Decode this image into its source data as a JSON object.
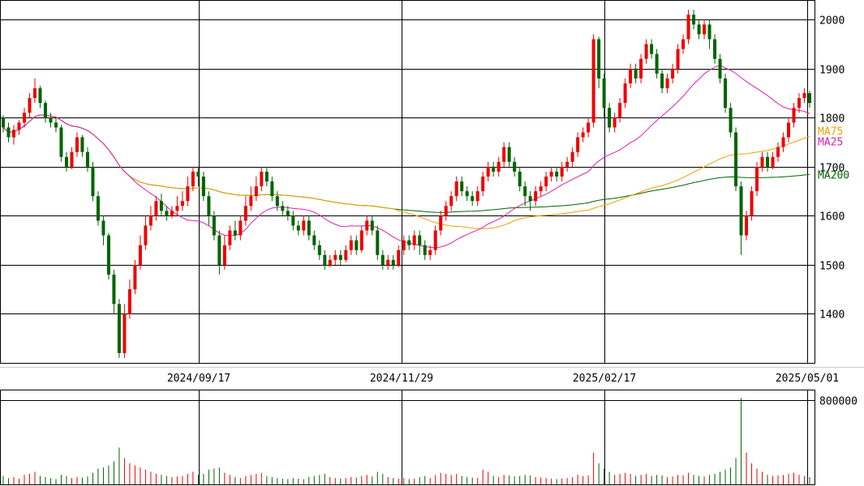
{
  "colors": {
    "up_candle": "#ef0000",
    "down_candle": "#006400",
    "ma_short": "#f0a000",
    "ma25": "#e020b0",
    "ma200": "#006400",
    "grid": "#000000",
    "background": "#ffffff"
  },
  "chart_data": {
    "type": "candlestick",
    "price_axis": {
      "ticks": [
        "2000",
        "1900",
        "1800",
        "1700",
        "1600",
        "1500",
        "1400"
      ],
      "ylim": [
        1300,
        2040
      ]
    },
    "date_axis": {
      "ticks": [
        "2024/09/17",
        "2024/11/29",
        "2025/02/17",
        "2025/05/01"
      ]
    },
    "moving_average_labels": [
      "MA75",
      "MA25",
      "MA200"
    ],
    "volume_axis": {
      "ticks": [
        "800000"
      ],
      "ylim": [
        0,
        900000
      ]
    },
    "candles": [
      [
        1800,
        1780,
        1805,
        1770,
        80000
      ],
      [
        1780,
        1760,
        1790,
        1750,
        60000
      ],
      [
        1760,
        1775,
        1785,
        1745,
        70000
      ],
      [
        1775,
        1790,
        1795,
        1765,
        55000
      ],
      [
        1790,
        1810,
        1820,
        1780,
        90000
      ],
      [
        1810,
        1840,
        1850,
        1800,
        100000
      ],
      [
        1840,
        1860,
        1880,
        1830,
        120000
      ],
      [
        1860,
        1830,
        1865,
        1820,
        80000
      ],
      [
        1830,
        1800,
        1835,
        1790,
        70000
      ],
      [
        1800,
        1790,
        1810,
        1780,
        60000
      ],
      [
        1790,
        1780,
        1800,
        1770,
        50000
      ],
      [
        1780,
        1720,
        1785,
        1710,
        90000
      ],
      [
        1720,
        1700,
        1730,
        1690,
        80000
      ],
      [
        1700,
        1730,
        1740,
        1695,
        60000
      ],
      [
        1730,
        1760,
        1770,
        1720,
        70000
      ],
      [
        1760,
        1730,
        1765,
        1720,
        65000
      ],
      [
        1730,
        1700,
        1740,
        1690,
        75000
      ],
      [
        1700,
        1640,
        1710,
        1630,
        110000
      ],
      [
        1640,
        1590,
        1650,
        1580,
        150000
      ],
      [
        1590,
        1560,
        1600,
        1540,
        160000
      ],
      [
        1560,
        1480,
        1565,
        1470,
        180000
      ],
      [
        1480,
        1420,
        1490,
        1400,
        220000
      ],
      [
        1420,
        1320,
        1430,
        1310,
        350000
      ],
      [
        1320,
        1400,
        1420,
        1310,
        250000
      ],
      [
        1400,
        1450,
        1470,
        1390,
        200000
      ],
      [
        1450,
        1500,
        1510,
        1440,
        180000
      ],
      [
        1500,
        1540,
        1560,
        1490,
        160000
      ],
      [
        1540,
        1580,
        1600,
        1530,
        140000
      ],
      [
        1580,
        1600,
        1620,
        1570,
        120000
      ],
      [
        1600,
        1630,
        1640,
        1590,
        100000
      ],
      [
        1630,
        1610,
        1645,
        1600,
        90000
      ],
      [
        1610,
        1600,
        1620,
        1590,
        80000
      ],
      [
        1600,
        1610,
        1620,
        1595,
        70000
      ],
      [
        1610,
        1620,
        1640,
        1600,
        75000
      ],
      [
        1620,
        1630,
        1650,
        1610,
        80000
      ],
      [
        1630,
        1660,
        1680,
        1620,
        100000
      ],
      [
        1660,
        1690,
        1700,
        1650,
        120000
      ],
      [
        1690,
        1680,
        1700,
        1660,
        90000
      ],
      [
        1680,
        1640,
        1690,
        1630,
        100000
      ],
      [
        1640,
        1600,
        1650,
        1580,
        140000
      ],
      [
        1600,
        1560,
        1610,
        1550,
        150000
      ],
      [
        1560,
        1500,
        1570,
        1480,
        160000
      ],
      [
        1500,
        1540,
        1560,
        1490,
        110000
      ],
      [
        1540,
        1570,
        1580,
        1530,
        90000
      ],
      [
        1570,
        1560,
        1590,
        1550,
        70000
      ],
      [
        1560,
        1590,
        1600,
        1550,
        60000
      ],
      [
        1590,
        1620,
        1640,
        1580,
        80000
      ],
      [
        1620,
        1640,
        1660,
        1610,
        90000
      ],
      [
        1640,
        1660,
        1680,
        1630,
        100000
      ],
      [
        1660,
        1690,
        1700,
        1650,
        110000
      ],
      [
        1690,
        1670,
        1700,
        1660,
        80000
      ],
      [
        1670,
        1640,
        1680,
        1630,
        70000
      ],
      [
        1640,
        1620,
        1650,
        1610,
        60000
      ],
      [
        1620,
        1610,
        1630,
        1600,
        55000
      ],
      [
        1610,
        1600,
        1620,
        1590,
        50000
      ],
      [
        1600,
        1580,
        1610,
        1570,
        60000
      ],
      [
        1580,
        1570,
        1590,
        1560,
        55000
      ],
      [
        1570,
        1590,
        1600,
        1560,
        50000
      ],
      [
        1590,
        1560,
        1600,
        1550,
        70000
      ],
      [
        1560,
        1540,
        1570,
        1530,
        80000
      ],
      [
        1540,
        1520,
        1550,
        1510,
        90000
      ],
      [
        1520,
        1500,
        1530,
        1490,
        100000
      ],
      [
        1500,
        1510,
        1520,
        1495,
        70000
      ],
      [
        1510,
        1520,
        1530,
        1500,
        60000
      ],
      [
        1520,
        1510,
        1530,
        1500,
        55000
      ],
      [
        1510,
        1530,
        1540,
        1505,
        60000
      ],
      [
        1530,
        1550,
        1560,
        1520,
        70000
      ],
      [
        1550,
        1530,
        1560,
        1520,
        65000
      ],
      [
        1530,
        1570,
        1580,
        1525,
        80000
      ],
      [
        1570,
        1590,
        1600,
        1560,
        90000
      ],
      [
        1590,
        1570,
        1600,
        1560,
        75000
      ],
      [
        1570,
        1520,
        1580,
        1510,
        120000
      ],
      [
        1520,
        1500,
        1530,
        1490,
        100000
      ],
      [
        1500,
        1510,
        1520,
        1490,
        70000
      ],
      [
        1510,
        1500,
        1520,
        1490,
        60000
      ],
      [
        1500,
        1530,
        1540,
        1495,
        55000
      ],
      [
        1530,
        1550,
        1560,
        1520,
        60000
      ],
      [
        1550,
        1540,
        1560,
        1530,
        50000
      ],
      [
        1540,
        1560,
        1570,
        1530,
        55000
      ],
      [
        1560,
        1540,
        1570,
        1520,
        70000
      ],
      [
        1540,
        1520,
        1550,
        1510,
        80000
      ],
      [
        1520,
        1530,
        1540,
        1510,
        60000
      ],
      [
        1530,
        1570,
        1580,
        1520,
        90000
      ],
      [
        1570,
        1600,
        1610,
        1560,
        110000
      ],
      [
        1600,
        1620,
        1630,
        1590,
        100000
      ],
      [
        1620,
        1640,
        1650,
        1610,
        90000
      ],
      [
        1640,
        1670,
        1680,
        1630,
        100000
      ],
      [
        1670,
        1650,
        1680,
        1640,
        80000
      ],
      [
        1650,
        1640,
        1660,
        1630,
        70000
      ],
      [
        1640,
        1630,
        1650,
        1620,
        65000
      ],
      [
        1630,
        1650,
        1660,
        1620,
        60000
      ],
      [
        1650,
        1680,
        1690,
        1640,
        140000
      ],
      [
        1680,
        1700,
        1710,
        1670,
        120000
      ],
      [
        1700,
        1690,
        1710,
        1680,
        80000
      ],
      [
        1690,
        1710,
        1720,
        1680,
        70000
      ],
      [
        1710,
        1740,
        1750,
        1700,
        90000
      ],
      [
        1740,
        1710,
        1750,
        1700,
        85000
      ],
      [
        1710,
        1690,
        1720,
        1680,
        75000
      ],
      [
        1690,
        1660,
        1700,
        1650,
        80000
      ],
      [
        1660,
        1640,
        1670,
        1620,
        90000
      ],
      [
        1640,
        1630,
        1650,
        1610,
        85000
      ],
      [
        1630,
        1650,
        1660,
        1620,
        70000
      ],
      [
        1650,
        1660,
        1670,
        1640,
        65000
      ],
      [
        1660,
        1680,
        1690,
        1650,
        60000
      ],
      [
        1680,
        1690,
        1700,
        1670,
        55000
      ],
      [
        1690,
        1680,
        1700,
        1670,
        50000
      ],
      [
        1680,
        1700,
        1710,
        1670,
        55000
      ],
      [
        1700,
        1710,
        1720,
        1690,
        60000
      ],
      [
        1710,
        1730,
        1740,
        1700,
        70000
      ],
      [
        1730,
        1760,
        1770,
        1720,
        90000
      ],
      [
        1760,
        1770,
        1780,
        1750,
        80000
      ],
      [
        1770,
        1790,
        1800,
        1760,
        85000
      ],
      [
        1790,
        1960,
        1970,
        1780,
        300000
      ],
      [
        1960,
        1880,
        1965,
        1860,
        200000
      ],
      [
        1880,
        1820,
        1890,
        1800,
        150000
      ],
      [
        1820,
        1780,
        1830,
        1770,
        120000
      ],
      [
        1780,
        1800,
        1810,
        1770,
        90000
      ],
      [
        1800,
        1830,
        1840,
        1790,
        100000
      ],
      [
        1830,
        1870,
        1880,
        1820,
        110000
      ],
      [
        1870,
        1900,
        1910,
        1860,
        100000
      ],
      [
        1900,
        1880,
        1910,
        1870,
        80000
      ],
      [
        1880,
        1920,
        1930,
        1870,
        90000
      ],
      [
        1920,
        1950,
        1960,
        1910,
        100000
      ],
      [
        1950,
        1930,
        1960,
        1920,
        80000
      ],
      [
        1930,
        1890,
        1940,
        1880,
        90000
      ],
      [
        1890,
        1860,
        1900,
        1850,
        85000
      ],
      [
        1860,
        1880,
        1890,
        1850,
        70000
      ],
      [
        1880,
        1900,
        1910,
        1870,
        75000
      ],
      [
        1900,
        1940,
        1950,
        1890,
        90000
      ],
      [
        1940,
        1960,
        1970,
        1930,
        85000
      ],
      [
        1960,
        2010,
        2020,
        1950,
        110000
      ],
      [
        2010,
        1990,
        2020,
        1980,
        90000
      ],
      [
        1990,
        1970,
        2000,
        1960,
        80000
      ],
      [
        1970,
        1990,
        2000,
        1960,
        75000
      ],
      [
        1990,
        1960,
        2000,
        1940,
        90000
      ],
      [
        1960,
        1920,
        1970,
        1910,
        100000
      ],
      [
        1920,
        1880,
        1930,
        1870,
        120000
      ],
      [
        1880,
        1820,
        1890,
        1810,
        140000
      ],
      [
        1820,
        1770,
        1830,
        1760,
        160000
      ],
      [
        1770,
        1660,
        1780,
        1650,
        250000
      ],
      [
        1660,
        1560,
        1670,
        1520,
        820000
      ],
      [
        1560,
        1600,
        1610,
        1550,
        300000
      ],
      [
        1600,
        1650,
        1660,
        1590,
        200000
      ],
      [
        1650,
        1700,
        1710,
        1640,
        150000
      ],
      [
        1700,
        1720,
        1730,
        1690,
        120000
      ],
      [
        1720,
        1700,
        1730,
        1690,
        90000
      ],
      [
        1700,
        1720,
        1730,
        1695,
        80000
      ],
      [
        1720,
        1740,
        1750,
        1710,
        85000
      ],
      [
        1740,
        1760,
        1770,
        1730,
        90000
      ],
      [
        1760,
        1790,
        1800,
        1750,
        100000
      ],
      [
        1790,
        1820,
        1830,
        1780,
        110000
      ],
      [
        1820,
        1840,
        1850,
        1810,
        90000
      ],
      [
        1840,
        1850,
        1860,
        1830,
        80000
      ],
      [
        1850,
        1830,
        1855,
        1820,
        70000
      ]
    ]
  }
}
